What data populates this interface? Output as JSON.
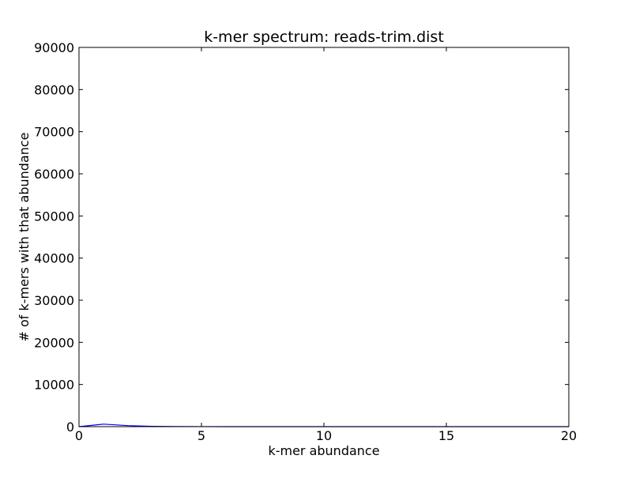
{
  "chart_data": {
    "type": "line",
    "title": "k-mer spectrum: reads-trim.dist",
    "xlabel": "k-mer abundance",
    "ylabel": "# of k-mers with that abundance",
    "xlim": [
      0,
      20
    ],
    "ylim": [
      0,
      90000
    ],
    "xticks": [
      0,
      5,
      10,
      15,
      20
    ],
    "xtick_labels": [
      "0",
      "5",
      "10",
      "15",
      "20"
    ],
    "yticks": [
      0,
      10000,
      20000,
      30000,
      40000,
      50000,
      60000,
      70000,
      80000,
      90000
    ],
    "ytick_labels": [
      "0",
      "10000",
      "20000",
      "30000",
      "40000",
      "50000",
      "60000",
      "70000",
      "80000",
      "90000"
    ],
    "grid": false,
    "legend": "none",
    "series": [
      {
        "color": "#0000ff",
        "x": [
          0,
          1,
          2,
          3,
          4,
          5,
          6,
          7,
          8,
          9,
          10,
          11,
          12,
          13,
          14,
          15,
          16,
          17,
          18,
          19,
          20
        ],
        "y": [
          0,
          600,
          250,
          80,
          30,
          10,
          5,
          0,
          0,
          0,
          0,
          0,
          0,
          0,
          0,
          0,
          0,
          0,
          0,
          0,
          0
        ]
      }
    ]
  }
}
